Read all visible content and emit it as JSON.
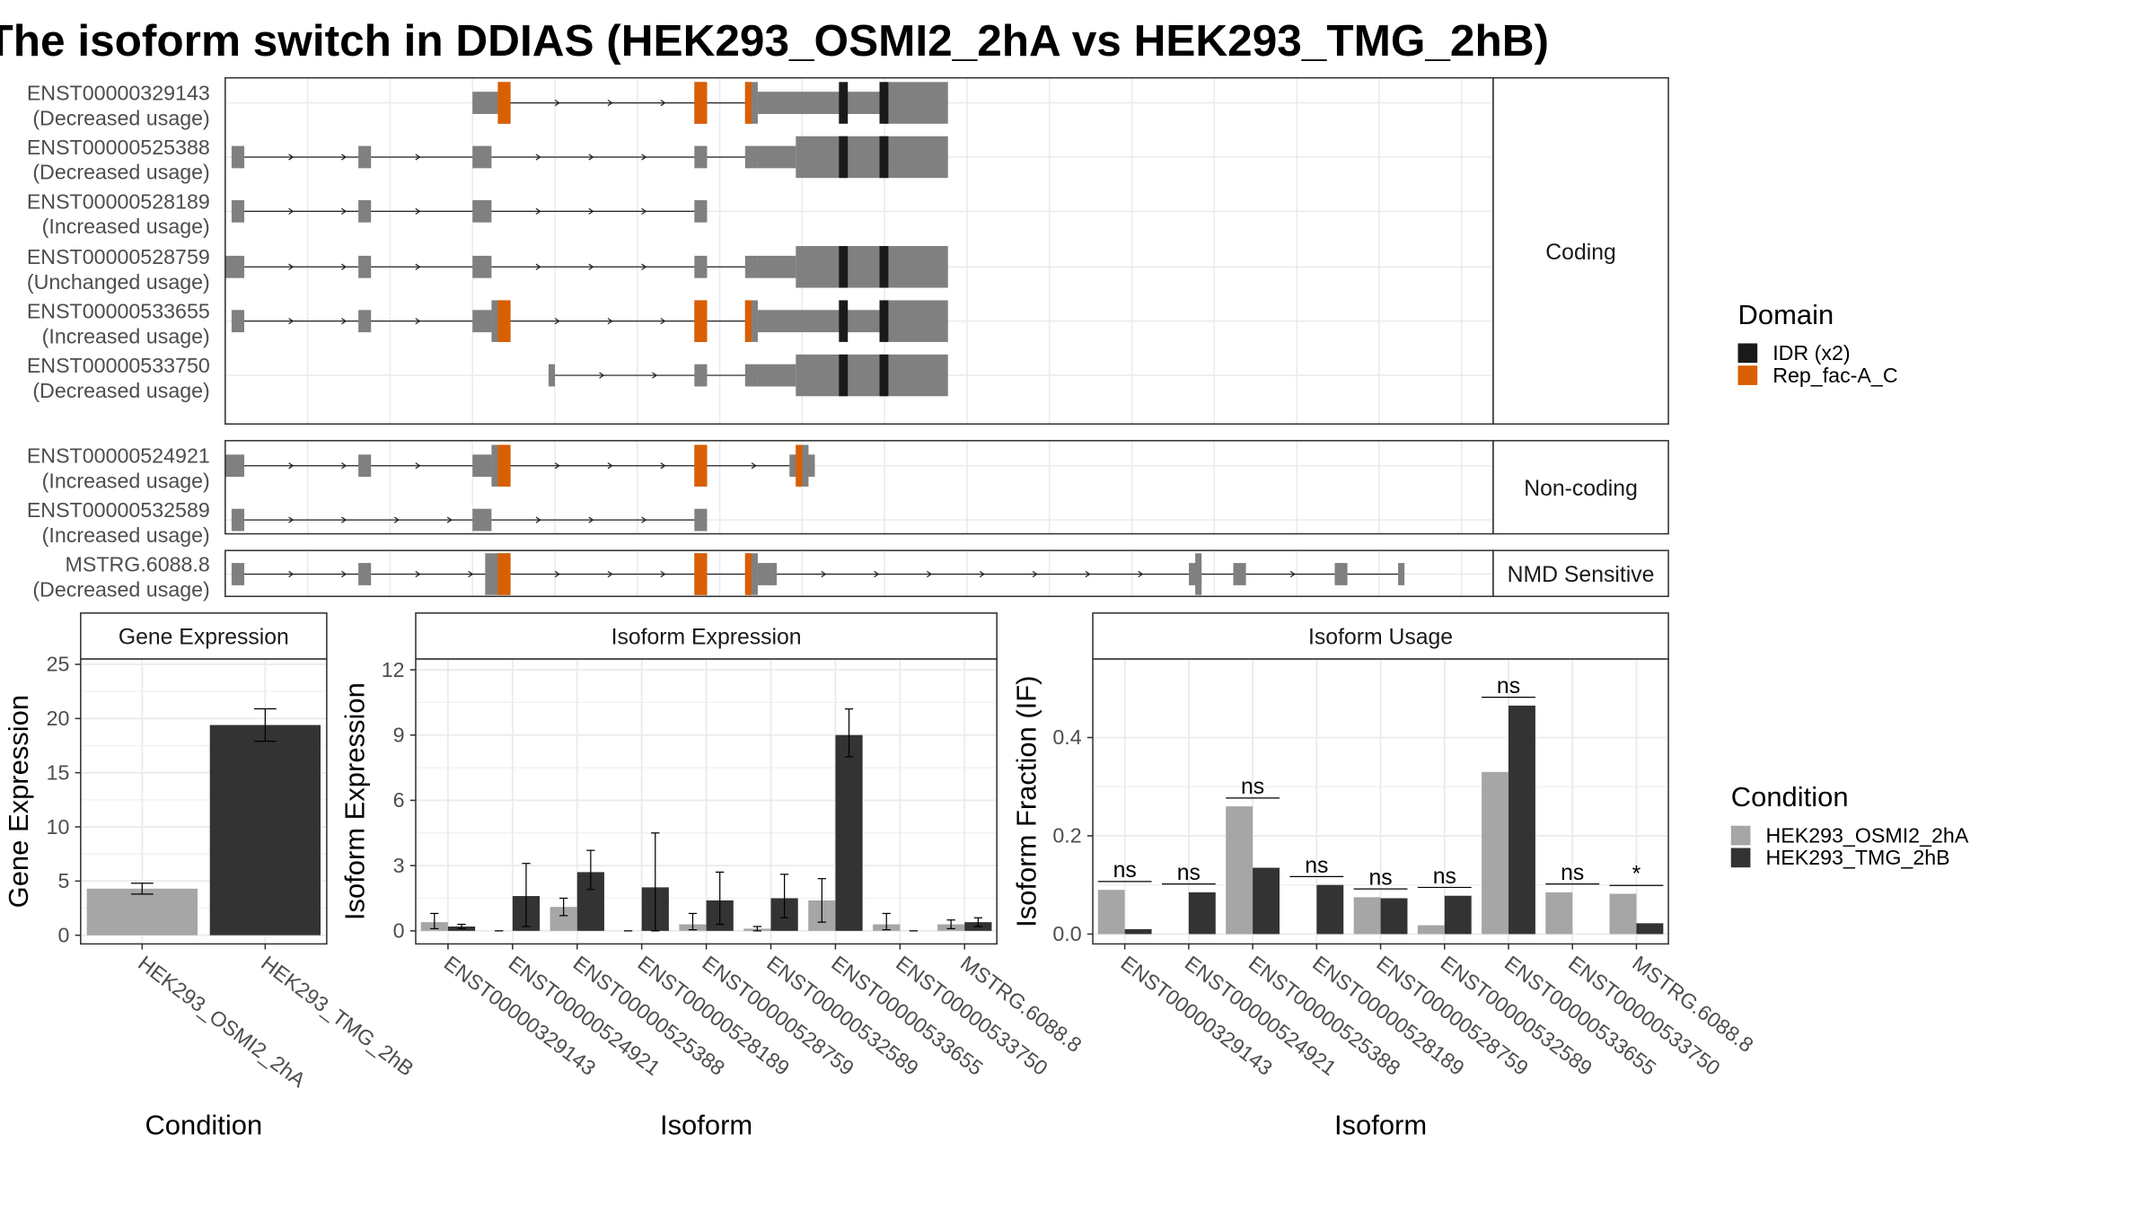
{
  "title": "The isoform switch in DDIAS (HEK293_OSMI2_2hA vs HEK293_TMG_2hB)",
  "colors": {
    "exon": "#808080",
    "idr": "#1a1a1a",
    "rep_fac": "#d95f02",
    "condA": "#a6a6a6",
    "condB": "#333333",
    "grid": "#ebebeb",
    "strip_bg": "#ffffff"
  },
  "structure": {
    "xlim": [
      0,
      100
    ],
    "panels": [
      {
        "label": "Coding",
        "isoforms": [
          {
            "id": "ENST00000329143",
            "usage": "(Decreased usage)",
            "utr": [
              [
                19.5,
                21.5
              ],
              [
                42,
                52
              ]
            ],
            "cds": [
              [
                21.5,
                22.5
              ],
              [
                37,
                38
              ],
              [
                41,
                42
              ],
              [
                52,
                57
              ]
            ],
            "rep": [
              [
                21.5,
                22.5
              ],
              [
                37,
                38
              ],
              [
                41,
                41.5
              ]
            ],
            "idr": [
              [
                48.4,
                49.1
              ],
              [
                51.6,
                52.3
              ]
            ]
          },
          {
            "id": "ENST00000525388",
            "usage": "(Decreased usage)",
            "utr": [
              [
                0.5,
                1.5
              ],
              [
                10.5,
                11.5
              ],
              [
                19.5,
                21
              ],
              [
                37,
                38
              ],
              [
                41,
                42
              ],
              [
                42,
                45
              ]
            ],
            "cds": [
              [
                45,
                57
              ]
            ],
            "rep": [],
            "idr": [
              [
                48.4,
                49.1
              ],
              [
                51.6,
                52.3
              ]
            ]
          },
          {
            "id": "ENST00000528189",
            "usage": "(Increased usage)",
            "utr": [
              [
                0.5,
                1.5
              ],
              [
                10.5,
                11.5
              ],
              [
                19.5,
                21
              ],
              [
                37,
                38
              ]
            ],
            "cds": [],
            "rep": [],
            "idr": []
          },
          {
            "id": "ENST00000528759",
            "usage": "(Unchanged usage)",
            "utr": [
              [
                0,
                1.5
              ],
              [
                10.5,
                11.5
              ],
              [
                19.5,
                21
              ],
              [
                37,
                38
              ],
              [
                41,
                42
              ],
              [
                42,
                45
              ]
            ],
            "cds": [
              [
                45,
                57
              ]
            ],
            "rep": [],
            "idr": [
              [
                48.4,
                49.1
              ],
              [
                51.6,
                52.3
              ]
            ]
          },
          {
            "id": "ENST00000533655",
            "usage": "(Increased usage)",
            "utr": [
              [
                0.5,
                1.5
              ],
              [
                10.5,
                11.5
              ],
              [
                19.5,
                21
              ],
              [
                42,
                52
              ]
            ],
            "cds": [
              [
                21,
                22.5
              ],
              [
                37,
                38
              ],
              [
                41,
                42
              ],
              [
                52,
                57
              ]
            ],
            "rep": [
              [
                21.5,
                22.5
              ],
              [
                37,
                38
              ],
              [
                41,
                41.5
              ]
            ],
            "idr": [
              [
                48.4,
                49.1
              ],
              [
                51.6,
                52.3
              ]
            ]
          },
          {
            "id": "ENST00000533750",
            "usage": "(Decreased usage)",
            "utr": [
              [
                25.5,
                26
              ],
              [
                37,
                38
              ],
              [
                41,
                42
              ],
              [
                42,
                45
              ]
            ],
            "cds": [
              [
                45,
                57
              ]
            ],
            "rep": [],
            "idr": [
              [
                48.4,
                49.1
              ],
              [
                51.6,
                52.3
              ]
            ]
          }
        ]
      },
      {
        "label": "Non-coding",
        "isoforms": [
          {
            "id": "ENST00000524921",
            "usage": "(Increased usage)",
            "utr": [
              [
                0,
                1.5
              ],
              [
                10.5,
                11.5
              ],
              [
                19.5,
                21
              ],
              [
                44.5,
                46.5
              ]
            ],
            "cds": [
              [
                21,
                22.5
              ],
              [
                37,
                38
              ],
              [
                45,
                46
              ]
            ],
            "rep": [
              [
                21.5,
                22.5
              ],
              [
                37,
                38
              ],
              [
                45,
                45.5
              ]
            ],
            "idr": []
          },
          {
            "id": "ENST00000532589",
            "usage": "(Increased usage)",
            "utr": [
              [
                0.5,
                1.5
              ],
              [
                19.5,
                21
              ],
              [
                37,
                38
              ]
            ],
            "cds": [],
            "rep": [],
            "idr": []
          }
        ]
      },
      {
        "label": "NMD Sensitive",
        "isoforms": [
          {
            "id": "MSTRG.6088.8",
            "usage": "(Decreased usage)",
            "utr": [
              [
                0.5,
                1.5
              ],
              [
                10.5,
                11.5
              ],
              [
                42,
                43.5
              ],
              [
                76,
                77
              ],
              [
                79.5,
                80.5
              ],
              [
                87.5,
                88.5
              ],
              [
                92.5,
                93
              ]
            ],
            "cds": [
              [
                20.5,
                22.5
              ],
              [
                37,
                38
              ],
              [
                41,
                42
              ],
              [
                76.5,
                77
              ]
            ],
            "rep": [
              [
                21.5,
                22.5
              ],
              [
                37,
                38
              ],
              [
                41,
                41.5
              ]
            ],
            "idr": []
          }
        ]
      }
    ],
    "legend": {
      "title": "Domain",
      "items": [
        {
          "label": "IDR (x2)",
          "color": "#1a1a1a"
        },
        {
          "label": "Rep_fac-A_C",
          "color": "#d95f02"
        }
      ]
    }
  },
  "chart_data": [
    {
      "type": "bar",
      "title": "Gene Expression",
      "xlabel": "Condition",
      "ylabel": "Gene Expression",
      "categories": [
        "HEK293_OSMI2_2hA",
        "HEK293_TMG_2hB"
      ],
      "values": [
        4.3,
        19.4
      ],
      "errors": [
        [
          3.8,
          4.8
        ],
        [
          17.9,
          20.9
        ]
      ],
      "colors": [
        "#a6a6a6",
        "#333333"
      ],
      "ylim": [
        -0.8,
        25.5
      ],
      "yticks": [
        0,
        5,
        10,
        15,
        20,
        25
      ]
    },
    {
      "type": "bar",
      "title": "Isoform Expression",
      "xlabel": "Isoform",
      "ylabel": "Isoform Expression",
      "categories": [
        "ENST00000329143",
        "ENST00000524921",
        "ENST00000525388",
        "ENST00000528189",
        "ENST00000528759",
        "ENST00000532589",
        "ENST00000533655",
        "ENST00000533750",
        "MSTRG.6088.8"
      ],
      "series": [
        {
          "name": "HEK293_OSMI2_2hA",
          "values": [
            0.4,
            0.0,
            1.1,
            0.0,
            0.3,
            0.1,
            1.4,
            0.3,
            0.3
          ],
          "errors": [
            [
              0.1,
              0.8
            ],
            [
              0.0,
              0.0
            ],
            [
              0.7,
              1.5
            ],
            [
              0.0,
              0.0
            ],
            [
              0.05,
              0.8
            ],
            [
              0.0,
              0.2
            ],
            [
              0.4,
              2.4
            ],
            [
              0.05,
              0.8
            ],
            [
              0.1,
              0.5
            ]
          ]
        },
        {
          "name": "HEK293_TMG_2hB",
          "values": [
            0.2,
            1.6,
            2.7,
            2.0,
            1.4,
            1.5,
            9.0,
            0.0,
            0.4
          ],
          "errors": [
            [
              0.1,
              0.3
            ],
            [
              0.2,
              3.1
            ],
            [
              1.9,
              3.7
            ],
            [
              0.0,
              4.5
            ],
            [
              0.3,
              2.7
            ],
            [
              0.6,
              2.6
            ],
            [
              8.0,
              10.2
            ],
            [
              0.0,
              0.0
            ],
            [
              0.2,
              0.6
            ]
          ]
        }
      ],
      "ylim": [
        -0.6,
        12.5
      ],
      "yticks": [
        0,
        3,
        6,
        9,
        12
      ]
    },
    {
      "type": "bar",
      "title": "Isoform Usage",
      "xlabel": "Isoform",
      "ylabel": "Isoform Fraction (IF)",
      "categories": [
        "ENST00000329143",
        "ENST00000524921",
        "ENST00000525388",
        "ENST00000528189",
        "ENST00000528759",
        "ENST00000532589",
        "ENST00000533655",
        "ENST00000533750",
        "MSTRG.6088.8"
      ],
      "series": [
        {
          "name": "HEK293_OSMI2_2hA",
          "values": [
            0.09,
            0.0,
            0.26,
            0.0,
            0.075,
            0.018,
            0.33,
            0.085,
            0.082
          ]
        },
        {
          "name": "HEK293_TMG_2hB",
          "values": [
            0.01,
            0.085,
            0.135,
            0.1,
            0.073,
            0.078,
            0.465,
            0.0,
            0.022
          ]
        }
      ],
      "significance": [
        "ns",
        "ns",
        "ns",
        "ns",
        "ns",
        "ns",
        "ns",
        "ns",
        "*"
      ],
      "ylim": [
        -0.02,
        0.56
      ],
      "yticks": [
        0.0,
        0.2,
        0.4
      ],
      "ytick_labels": [
        "0.0",
        "0.2",
        "0.4"
      ]
    }
  ],
  "condition_legend": {
    "title": "Condition",
    "items": [
      {
        "label": "HEK293_OSMI2_2hA",
        "color": "#a6a6a6"
      },
      {
        "label": "HEK293_TMG_2hB",
        "color": "#333333"
      }
    ]
  }
}
